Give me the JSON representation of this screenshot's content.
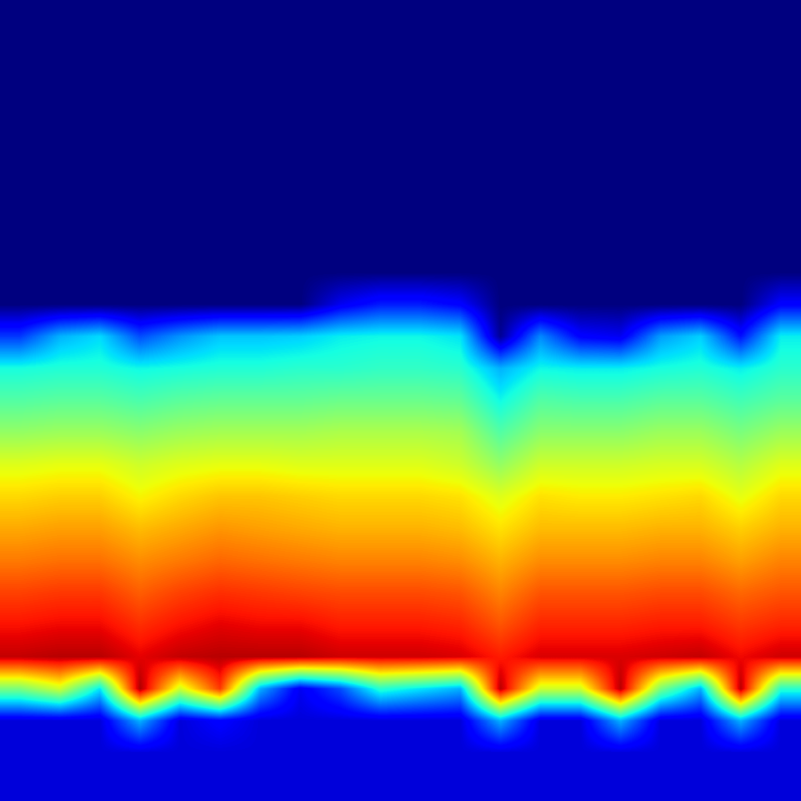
{
  "chart_data": {
    "type": "heatmap",
    "color": "jet",
    "tick_labels": false,
    "value_range": [
      0,
      1
    ],
    "cells": [
      [
        0,
        0,
        0,
        0,
        0,
        0,
        0,
        0,
        0,
        0,
        0,
        0,
        0,
        0,
        0,
        0,
        0,
        0,
        0,
        0
      ],
      [
        0,
        0,
        0,
        0,
        0,
        0,
        0,
        0,
        0,
        0,
        0,
        0,
        0,
        0,
        0,
        0,
        0,
        0,
        0,
        0
      ],
      [
        0,
        0,
        0,
        0,
        0,
        0,
        0,
        0,
        0,
        0,
        0,
        0,
        0,
        0,
        0,
        0,
        0,
        0,
        0,
        0
      ],
      [
        0,
        0,
        0,
        0,
        0,
        0,
        0,
        0,
        0,
        0,
        0,
        0,
        0,
        0,
        0,
        0,
        0,
        0,
        0,
        0
      ],
      [
        0,
        0,
        0,
        0,
        0,
        0,
        0,
        0,
        0,
        0,
        0,
        0,
        0,
        0,
        0,
        0,
        0,
        0,
        0,
        0
      ],
      [
        0,
        0,
        0,
        0,
        0,
        0,
        0,
        0,
        0,
        0,
        0,
        0,
        0,
        0,
        0,
        0,
        0,
        0,
        0,
        0
      ],
      [
        0,
        0,
        0,
        0,
        0,
        0,
        0,
        0,
        0,
        0,
        0,
        0,
        0,
        0,
        0,
        0,
        0,
        0,
        0,
        0
      ],
      [
        0,
        0,
        0,
        0,
        0,
        0,
        0,
        0,
        0,
        0,
        0,
        0,
        0,
        0,
        0,
        0,
        0,
        0,
        0,
        0
      ],
      [
        0,
        0,
        0,
        0,
        0,
        0,
        0,
        0,
        0,
        0,
        0,
        0,
        0,
        0,
        0,
        0,
        0,
        0,
        0,
        0
      ],
      [
        0,
        0,
        0,
        0,
        0,
        0,
        0,
        0,
        0.1,
        0.15,
        0.15,
        0.12,
        0,
        0,
        0,
        0,
        0,
        0,
        0,
        0.12
      ],
      [
        0.18,
        0.3,
        0.34,
        0.2,
        0.27,
        0.32,
        0.32,
        0.33,
        0.36,
        0.37,
        0.37,
        0.35,
        0.02,
        0.26,
        0.12,
        0.1,
        0.28,
        0.33,
        0.14,
        0.36
      ],
      [
        0.38,
        0.39,
        0.39,
        0.37,
        0.38,
        0.39,
        0.39,
        0.4,
        0.4,
        0.41,
        0.41,
        0.4,
        0.3,
        0.37,
        0.36,
        0.36,
        0.38,
        0.39,
        0.36,
        0.4
      ],
      [
        0.45,
        0.46,
        0.46,
        0.44,
        0.46,
        0.47,
        0.47,
        0.47,
        0.48,
        0.48,
        0.48,
        0.47,
        0.37,
        0.45,
        0.44,
        0.44,
        0.46,
        0.46,
        0.43,
        0.46
      ],
      [
        0.53,
        0.54,
        0.54,
        0.52,
        0.54,
        0.55,
        0.55,
        0.55,
        0.56,
        0.56,
        0.56,
        0.55,
        0.45,
        0.52,
        0.52,
        0.52,
        0.54,
        0.54,
        0.5,
        0.54
      ],
      [
        0.62,
        0.63,
        0.63,
        0.6,
        0.62,
        0.63,
        0.63,
        0.62,
        0.62,
        0.62,
        0.62,
        0.6,
        0.53,
        0.6,
        0.6,
        0.6,
        0.61,
        0.61,
        0.57,
        0.62
      ],
      [
        0.68,
        0.69,
        0.69,
        0.65,
        0.68,
        0.7,
        0.7,
        0.69,
        0.68,
        0.68,
        0.68,
        0.67,
        0.62,
        0.67,
        0.66,
        0.66,
        0.67,
        0.68,
        0.63,
        0.68
      ],
      [
        0.73,
        0.74,
        0.74,
        0.71,
        0.73,
        0.75,
        0.74,
        0.73,
        0.72,
        0.72,
        0.72,
        0.71,
        0.67,
        0.71,
        0.71,
        0.71,
        0.72,
        0.72,
        0.69,
        0.72
      ],
      [
        0.78,
        0.79,
        0.79,
        0.76,
        0.78,
        0.8,
        0.79,
        0.78,
        0.77,
        0.77,
        0.77,
        0.76,
        0.72,
        0.76,
        0.76,
        0.76,
        0.77,
        0.77,
        0.74,
        0.77
      ],
      [
        0.84,
        0.85,
        0.85,
        0.81,
        0.84,
        0.86,
        0.85,
        0.84,
        0.83,
        0.83,
        0.83,
        0.82,
        0.77,
        0.82,
        0.82,
        0.82,
        0.83,
        0.83,
        0.8,
        0.82
      ],
      [
        0.89,
        0.9,
        0.9,
        0.86,
        0.89,
        0.91,
        0.9,
        0.9,
        0.88,
        0.88,
        0.88,
        0.87,
        0.82,
        0.87,
        0.87,
        0.87,
        0.88,
        0.88,
        0.85,
        0.87
      ],
      [
        0.94,
        0.95,
        0.95,
        0.91,
        0.94,
        0.95,
        0.95,
        0.95,
        0.93,
        0.93,
        0.93,
        0.92,
        0.88,
        0.92,
        0.92,
        0.92,
        0.93,
        0.94,
        0.9,
        0.93
      ],
      [
        0.5,
        0.6,
        0.35,
        0.96,
        0.6,
        0.85,
        0.3,
        0.1,
        0.2,
        0.4,
        0.35,
        0.3,
        0.95,
        0.6,
        0.6,
        0.95,
        0.5,
        0.3,
        0.95,
        0.4
      ],
      [
        0.08,
        0.08,
        0.08,
        0.3,
        0.08,
        0.12,
        0.08,
        0.08,
        0.08,
        0.08,
        0.08,
        0.08,
        0.3,
        0.08,
        0.08,
        0.3,
        0.08,
        0.08,
        0.3,
        0.08
      ],
      [
        0.08,
        0.08,
        0.08,
        0.08,
        0.08,
        0.08,
        0.08,
        0.08,
        0.08,
        0.08,
        0.08,
        0.08,
        0.08,
        0.08,
        0.08,
        0.08,
        0.08,
        0.08,
        0.08,
        0.08
      ],
      [
        0.08,
        0.08,
        0.08,
        0.08,
        0.08,
        0.08,
        0.08,
        0.08,
        0.08,
        0.08,
        0.08,
        0.08,
        0.08,
        0.08,
        0.08,
        0.08,
        0.08,
        0.08,
        0.08,
        0.08
      ]
    ]
  }
}
